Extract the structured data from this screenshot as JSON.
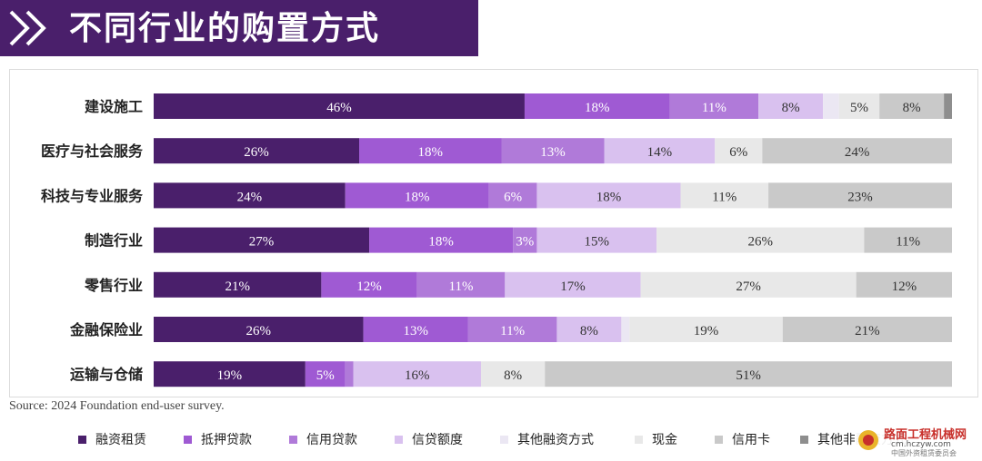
{
  "page": {
    "title": "不同行业的购置方式",
    "source": "Source: 2024 Foundation end-user survey."
  },
  "watermark": {
    "line1": "路面工程机械网",
    "line2": "cm.hczyw.com",
    "line3": "中国外资租赁委员会"
  },
  "colors": {
    "banner": "#4a1f6b",
    "series": [
      "#4a1f6b",
      "#9f5ad3",
      "#b07ad9",
      "#d9c1ef",
      "#ebe7f3",
      "#e8e8e8",
      "#c9c9c9",
      "#8e8e8e"
    ]
  },
  "chart_data": {
    "type": "bar",
    "orientation": "horizontal",
    "stacked": true,
    "categories": [
      "建设施工",
      "医疗与社会服务",
      "科技与专业服务",
      "制造行业",
      "零售行业",
      "金融保险业",
      "运输与仓储"
    ],
    "series": [
      {
        "name": "融资租赁",
        "values": [
          46,
          26,
          24,
          27,
          21,
          26,
          19
        ]
      },
      {
        "name": "抵押贷款",
        "values": [
          18,
          18,
          18,
          18,
          12,
          13,
          5
        ]
      },
      {
        "name": "信用贷款",
        "values": [
          11,
          13,
          6,
          3,
          11,
          11,
          1
        ]
      },
      {
        "name": "信贷额度",
        "values": [
          8,
          14,
          18,
          15,
          17,
          8,
          16
        ]
      },
      {
        "name": "其他融资方式",
        "values": [
          2,
          0,
          0,
          0,
          0,
          1,
          0
        ]
      },
      {
        "name": "现金",
        "values": [
          5,
          6,
          11,
          26,
          27,
          19,
          8
        ]
      },
      {
        "name": "信用卡",
        "values": [
          8,
          24,
          23,
          11,
          12,
          21,
          51
        ]
      },
      {
        "name": "其他非融资方式",
        "values": [
          1,
          0,
          0,
          0,
          0,
          0,
          0
        ]
      }
    ],
    "data_labels": [
      [
        "46%",
        "18%",
        "11%",
        "8%",
        "",
        "5%",
        "8%",
        ""
      ],
      [
        "26%",
        "18%",
        "13%",
        "14%",
        "",
        "6%",
        "24%",
        ""
      ],
      [
        "24%",
        "18%",
        "6%",
        "18%",
        "",
        "11%",
        "23%",
        ""
      ],
      [
        "27%",
        "18%",
        "3%",
        "15%",
        "",
        "26%",
        "11%",
        ""
      ],
      [
        "21%",
        "12%",
        "11%",
        "17%",
        "",
        "27%",
        "12%",
        ""
      ],
      [
        "26%",
        "13%",
        "11%",
        "8%",
        "",
        "19%",
        "21%",
        ""
      ],
      [
        "19%",
        "5%",
        "",
        "16%",
        "",
        "8%",
        "51%",
        ""
      ]
    ],
    "label_colors": [
      "#ffffff",
      "#ffffff",
      "#ffffff",
      "#333333",
      "#333333",
      "#333333",
      "#333333",
      "#333333"
    ],
    "xlim": [
      0,
      100
    ],
    "legend_position": "bottom",
    "grid": false
  }
}
